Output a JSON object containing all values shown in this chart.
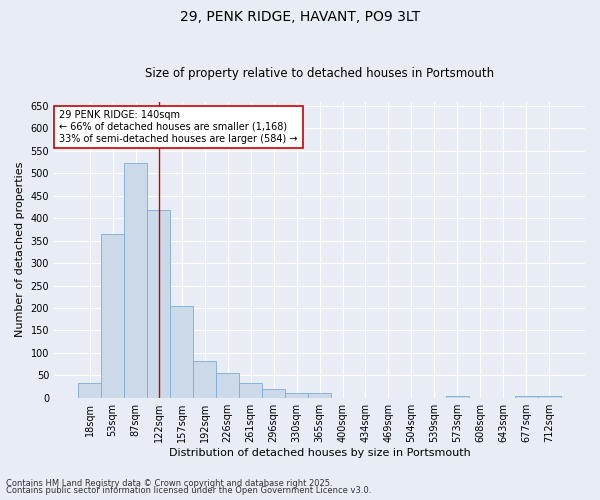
{
  "title": "29, PENK RIDGE, HAVANT, PO9 3LT",
  "subtitle": "Size of property relative to detached houses in Portsmouth",
  "xlabel": "Distribution of detached houses by size in Portsmouth",
  "ylabel": "Number of detached properties",
  "footnote1": "Contains HM Land Registry data © Crown copyright and database right 2025.",
  "footnote2": "Contains public sector information licensed under the Open Government Licence v3.0.",
  "categories": [
    "18sqm",
    "53sqm",
    "87sqm",
    "122sqm",
    "157sqm",
    "192sqm",
    "226sqm",
    "261sqm",
    "296sqm",
    "330sqm",
    "365sqm",
    "400sqm",
    "434sqm",
    "469sqm",
    "504sqm",
    "539sqm",
    "573sqm",
    "608sqm",
    "643sqm",
    "677sqm",
    "712sqm"
  ],
  "values": [
    33,
    365,
    523,
    418,
    205,
    82,
    56,
    33,
    20,
    11,
    10,
    0,
    0,
    0,
    0,
    0,
    4,
    0,
    0,
    3,
    4
  ],
  "bar_color": "#ccd9e8",
  "bar_edge_color": "#7badd4",
  "background_color": "#e8ecf4",
  "grid_color": "#ffffff",
  "vline_x": 3.0,
  "vline_color": "#cc0000",
  "annotation_text": "29 PENK RIDGE: 140sqm\n← 66% of detached houses are smaller (1,168)\n33% of semi-detached houses are larger (584) →",
  "annotation_box_color": "#ffffff",
  "annotation_box_edge": "#cc0000",
  "ylim": [
    0,
    660
  ],
  "yticks": [
    0,
    50,
    100,
    150,
    200,
    250,
    300,
    350,
    400,
    450,
    500,
    550,
    600,
    650
  ],
  "title_fontsize": 10,
  "subtitle_fontsize": 8.5,
  "xlabel_fontsize": 8,
  "ylabel_fontsize": 8,
  "tick_fontsize": 7,
  "annotation_fontsize": 7,
  "footnote_fontsize": 6
}
